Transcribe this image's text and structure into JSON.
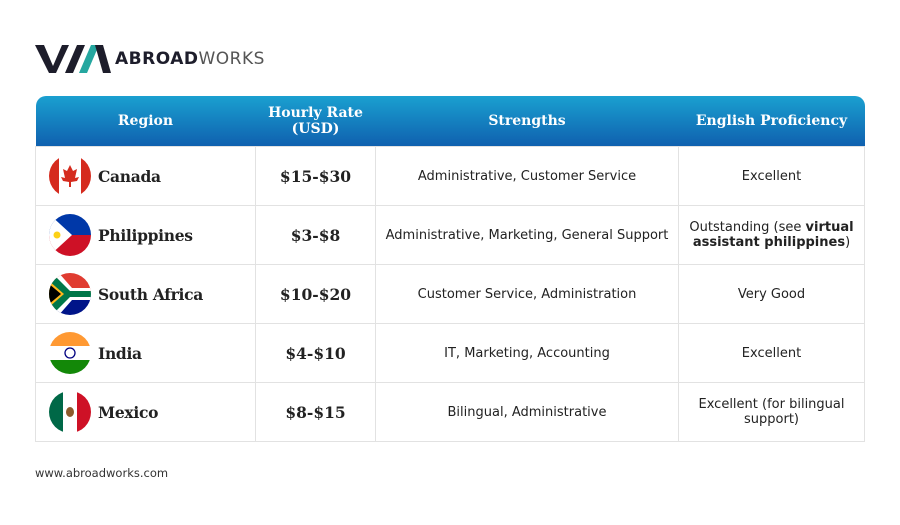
{
  "header": {
    "logo_bold": "ABROAD",
    "logo_light": "WORKS"
  },
  "table": {
    "columns": [
      "Region",
      "Hourly Rate (USD)",
      "Strengths",
      "English Proficiency"
    ],
    "rows": [
      {
        "region": "Canada",
        "rate": "$15-$30",
        "strengths": "Administrative, Customer Service",
        "english": [
          "Excellent"
        ]
      },
      {
        "region": "Philippines",
        "rate": "$3-$8",
        "strengths": "Administrative, Marketing, General Support",
        "english": [
          "Outstanding (see ",
          "virtual assistant philippines",
          ")"
        ]
      },
      {
        "region": "South Africa",
        "rate": "$10-$20",
        "strengths": "Customer Service, Administration",
        "english": [
          "Very Good"
        ]
      },
      {
        "region": "India",
        "rate": "$4-$10",
        "strengths": "IT, Marketing, Accounting",
        "english": [
          "Excellent"
        ]
      },
      {
        "region": "Mexico",
        "rate": "$8-$15",
        "strengths": "Bilingual, Administrative",
        "english": [
          "Excellent (for bilingual support)"
        ]
      }
    ]
  },
  "footer": {
    "url": "www.abroadworks.com"
  }
}
